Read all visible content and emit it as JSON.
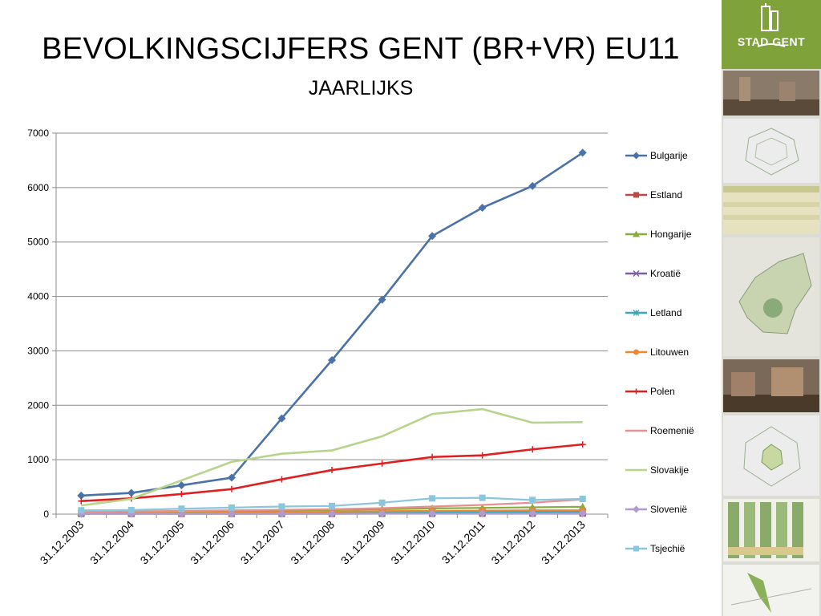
{
  "page": {
    "title": "BEVOLKINGSCIJFERS GENT (BR+VR) EU11",
    "subtitle": "JAARLIJKS"
  },
  "brand": {
    "logo_text": "STAD GENT",
    "accent": "#7fa23a"
  },
  "chart_data": {
    "type": "line",
    "x": [
      "31.12.2003",
      "31.12.2004",
      "31.12.2005",
      "31.12.2006",
      "31.12.2007",
      "31.12.2008",
      "31.12.2009",
      "31.12.2010",
      "31.12.2011",
      "31.12.2012",
      "31.12.2013"
    ],
    "ylim": [
      0,
      7000
    ],
    "yticks": [
      "0",
      "1000",
      "2000",
      "3000",
      "4000",
      "5000",
      "6000",
      "7000"
    ],
    "grid": true,
    "legend": "right",
    "series": [
      {
        "name": "Bulgarije",
        "color": "#4a72a8",
        "marker": "diamond",
        "values": [
          340,
          390,
          530,
          670,
          1760,
          2830,
          3940,
          5110,
          5630,
          6030,
          6640
        ]
      },
      {
        "name": "Estland",
        "color": "#b84a48",
        "marker": "square",
        "values": [
          5,
          5,
          5,
          6,
          6,
          6,
          8,
          8,
          10,
          10,
          12
        ]
      },
      {
        "name": "Hongarije",
        "color": "#8aab3e",
        "marker": "triangle",
        "values": [
          30,
          35,
          40,
          50,
          60,
          75,
          90,
          105,
          115,
          125,
          135
        ]
      },
      {
        "name": "Kroatië",
        "color": "#7a5fa0",
        "marker": "x",
        "values": [
          15,
          15,
          16,
          18,
          20,
          22,
          25,
          28,
          30,
          30,
          35
        ]
      },
      {
        "name": "Letland",
        "color": "#3aa6b8",
        "marker": "star",
        "values": [
          10,
          12,
          15,
          18,
          20,
          25,
          30,
          35,
          40,
          45,
          50
        ]
      },
      {
        "name": "Litouwen",
        "color": "#e88a35",
        "marker": "circle",
        "values": [
          15,
          18,
          22,
          28,
          35,
          45,
          55,
          60,
          65,
          70,
          70
        ]
      },
      {
        "name": "Polen",
        "color": "#e02020",
        "marker": "plus",
        "values": [
          240,
          290,
          370,
          460,
          640,
          810,
          930,
          1050,
          1080,
          1190,
          1280
        ]
      },
      {
        "name": "Roemenië",
        "color": "#e89090",
        "marker": "none",
        "values": [
          40,
          50,
          60,
          70,
          80,
          90,
          110,
          140,
          170,
          210,
          270
        ]
      },
      {
        "name": "Slovakije",
        "color": "#b8d48a",
        "marker": "none",
        "values": [
          160,
          280,
          620,
          960,
          1110,
          1170,
          1430,
          1840,
          1930,
          1680,
          1690
        ]
      },
      {
        "name": "Slovenië",
        "color": "#b09ad0",
        "marker": "diamond",
        "values": [
          5,
          5,
          6,
          6,
          8,
          8,
          10,
          10,
          12,
          12,
          15
        ]
      },
      {
        "name": "Tsjechië",
        "color": "#8cc6dc",
        "marker": "square",
        "values": [
          70,
          75,
          100,
          120,
          140,
          150,
          210,
          290,
          300,
          260,
          280
        ]
      }
    ]
  }
}
